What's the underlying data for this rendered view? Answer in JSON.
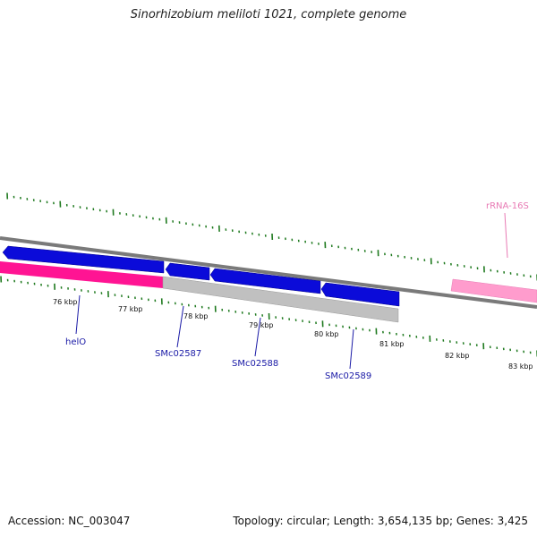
{
  "title": "Sinorhizobium meliloti 1021, complete genome",
  "accession": "Accession: NC_003047",
  "summary": "Topology: circular; Length: 3,654,135 bp; Genes: 3,425",
  "colors": {
    "backbone": "#7a7a7a",
    "cds_forward": "#0b0bd9",
    "cds_reverse_highlight": "#ff1493",
    "cds_reverse": "#c0c0c0",
    "rrna": "#ff9ccd",
    "ticks": "#1f7a1f",
    "gene_label": "#1a1aa6",
    "rna_label": "#e87ab4"
  },
  "scale": {
    "unit": "kbp",
    "ticks": [
      "76 kbp",
      "77 kbp",
      "78 kbp",
      "79 kbp",
      "80 kbp",
      "81 kbp",
      "82 kbp",
      "83 kbp"
    ]
  },
  "features": {
    "forward_cds": 4,
    "reverse_cds": 2,
    "rrna": 1
  },
  "gene_labels": [
    "helO",
    "SMc02587",
    "SMc02588",
    "SMc02589"
  ],
  "rna_labels": [
    "rRNA-16S"
  ]
}
